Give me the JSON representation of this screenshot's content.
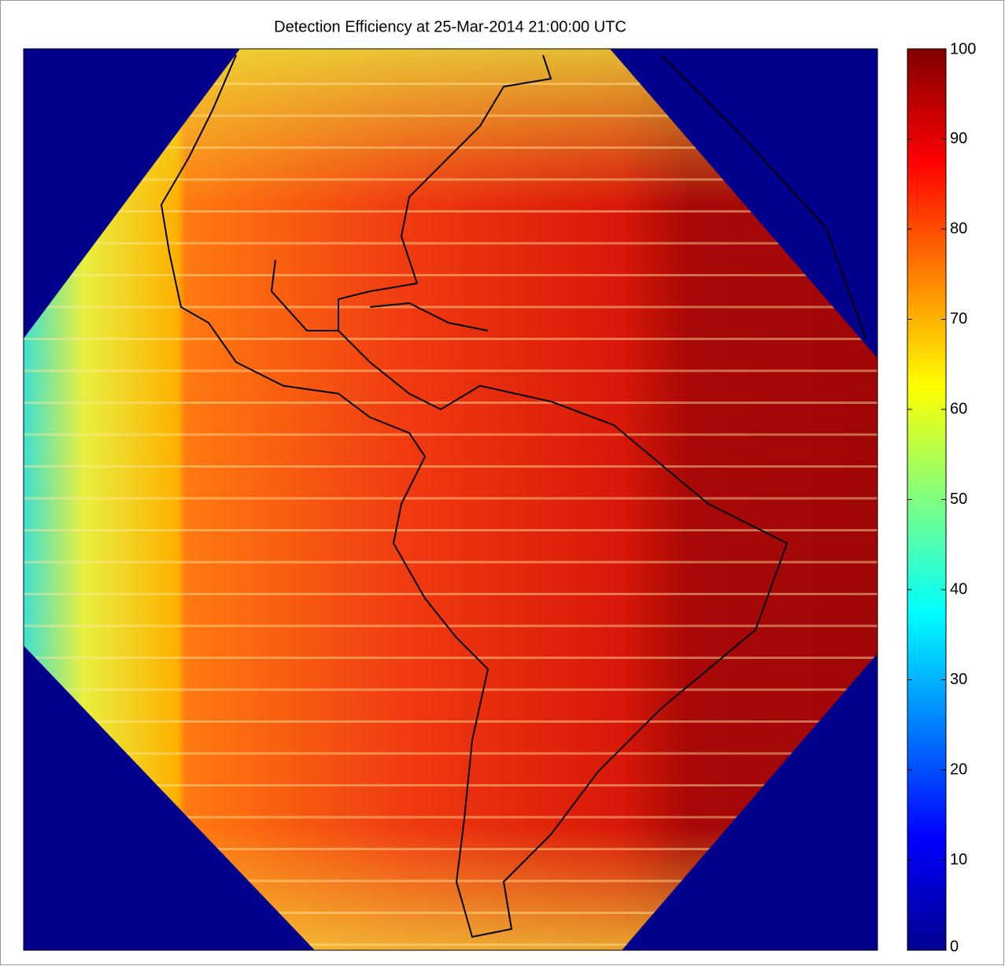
{
  "chart_data": {
    "type": "heatmap",
    "title": "Detection Efficiency at 25-Mar-2014 21:00:00 UTC",
    "colormap": "jet",
    "colorbar": {
      "lim": [
        0,
        100
      ],
      "ticks": [
        0,
        10,
        20,
        30,
        40,
        50,
        60,
        70,
        80,
        90,
        100
      ]
    }
  }
}
